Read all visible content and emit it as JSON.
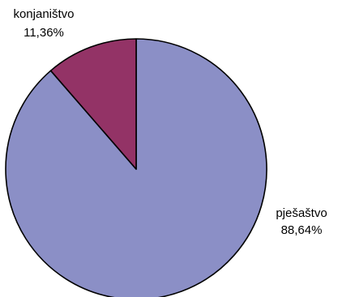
{
  "chart_data": {
    "type": "pie",
    "slices": [
      {
        "label": "pješaštvo",
        "value_label": "88,64%",
        "value": 88.64,
        "color": "#8b8fc6"
      },
      {
        "label": "konjaništvo",
        "value_label": "11,36%",
        "value": 11.36,
        "color": "#933366"
      }
    ],
    "start": "12 o'clock",
    "direction": "clockwise",
    "legend": "none",
    "outline_color": "#000000"
  }
}
